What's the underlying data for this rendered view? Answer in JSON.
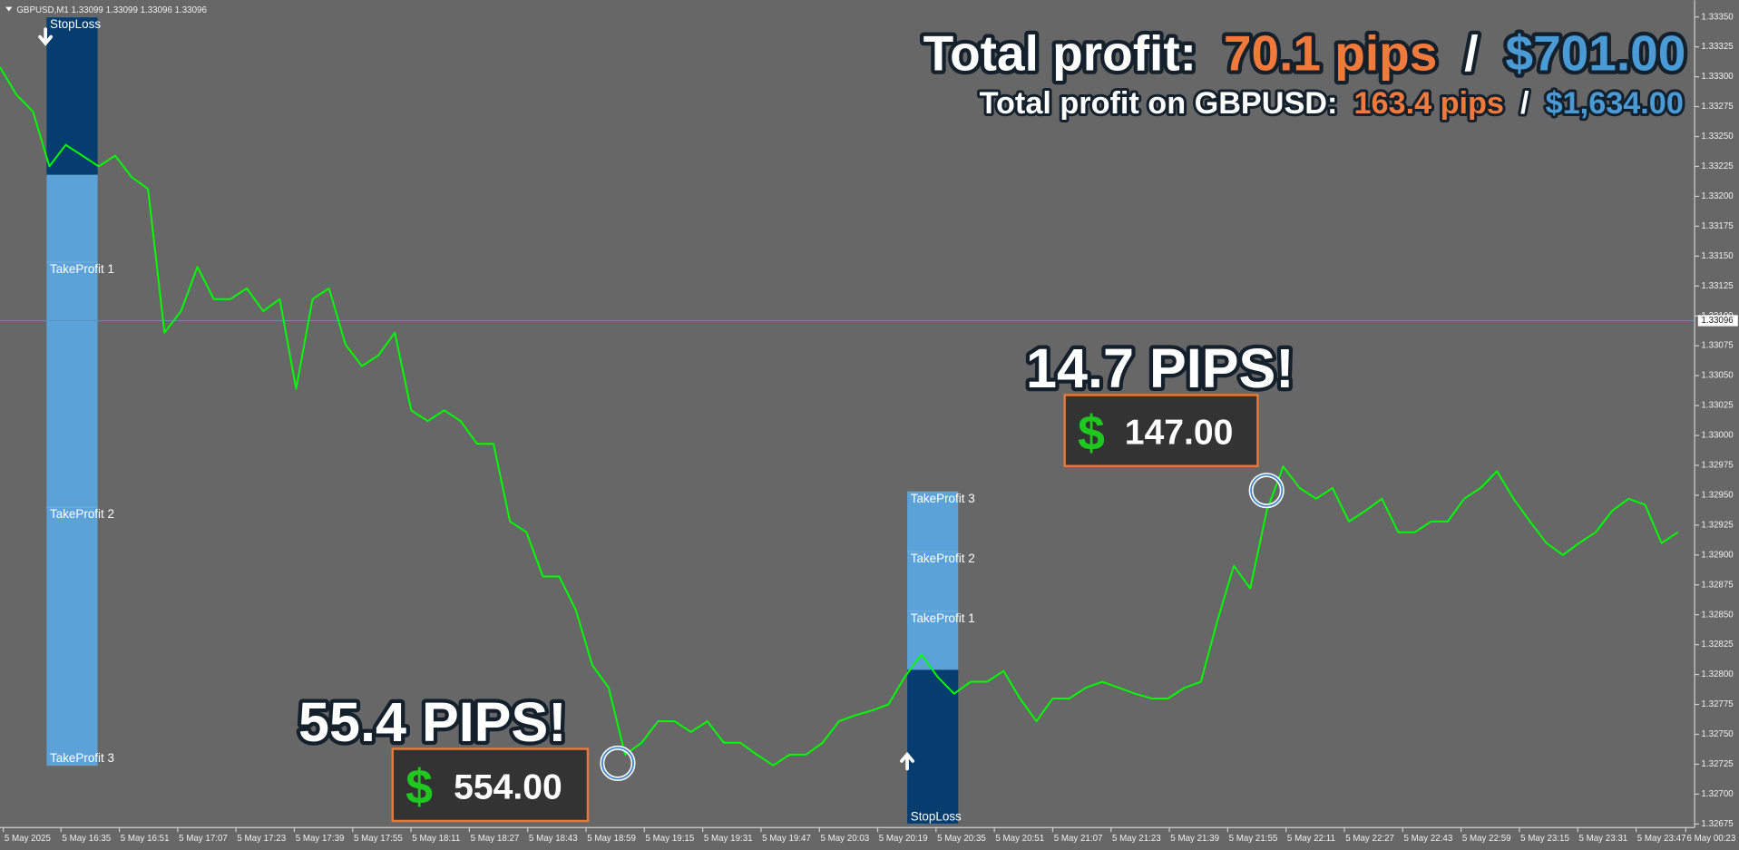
{
  "symbol_info": "GBPUSD,M1  1.33099 1.33099 1.33096 1.33096",
  "header": {
    "line1": {
      "label": "Total profit:",
      "pips": "70.1 pips",
      "separator": "/",
      "usd": "$701.00"
    },
    "line2": {
      "label": "Total profit on GBPUSD:",
      "pips": "163.4 pips",
      "separator": "/",
      "usd": "$1,634.00"
    }
  },
  "callouts": [
    {
      "headline": "55.4 PIPS!",
      "currency": "$",
      "amount": "554.00"
    },
    {
      "headline": "14.7 PIPS!",
      "currency": "$",
      "amount": "147.00"
    }
  ],
  "chart_data": {
    "type": "line",
    "color": "#00ff00",
    "values": [
      1.33308,
      1.33285,
      1.33271,
      1.33225,
      1.33243,
      1.33234,
      1.33225,
      1.33234,
      1.33216,
      1.33206,
      1.33086,
      1.33104,
      1.33141,
      1.33114,
      1.33114,
      1.33123,
      1.33104,
      1.33114,
      1.33039,
      1.33114,
      1.33123,
      1.33076,
      1.33058,
      1.33067,
      1.33086,
      1.33021,
      1.33012,
      1.33021,
      1.33012,
      1.32993,
      1.32993,
      1.32928,
      1.32919,
      1.32882,
      1.32882,
      1.32854,
      1.32808,
      1.32789,
      1.32733,
      1.32743,
      1.32761,
      1.32761,
      1.32752,
      1.32761,
      1.32743,
      1.32743,
      1.32733,
      1.32724,
      1.32733,
      1.32733,
      1.32743,
      1.32761,
      1.32766,
      1.3277,
      1.32775,
      1.32798,
      1.32817,
      1.32798,
      1.32784,
      1.32794,
      1.32794,
      1.32803,
      1.3278,
      1.32761,
      1.3278,
      1.3278,
      1.32789,
      1.32794,
      1.32789,
      1.32784,
      1.3278,
      1.3278,
      1.32789,
      1.32794,
      1.32845,
      1.32891,
      1.32872,
      1.32937,
      1.32974,
      1.32956,
      1.32947,
      1.32956,
      1.32928,
      1.32937,
      1.32947,
      1.32919,
      1.32919,
      1.32928,
      1.32928,
      1.32947,
      1.32956,
      1.3297,
      1.32947,
      1.32928,
      1.3291,
      1.329,
      1.3291,
      1.32919,
      1.32937,
      1.32947,
      1.32942,
      1.3291,
      1.32919
    ],
    "time_labels": [
      "5 May 2025",
      "5 May 16:35",
      "5 May 16:51",
      "5 May 17:07",
      "5 May 17:23",
      "5 May 17:39",
      "5 May 17:55",
      "5 May 18:11",
      "5 May 18:27",
      "5 May 18:43",
      "5 May 18:59",
      "5 May 19:15",
      "5 May 19:31",
      "5 May 19:47",
      "5 May 20:03",
      "5 May 20:19",
      "5 May 20:35",
      "5 May 20:51",
      "5 May 21:07",
      "5 May 21:23",
      "5 May 21:39",
      "5 May 21:55",
      "5 May 22:11",
      "5 May 22:27",
      "5 May 22:43",
      "5 May 22:59",
      "5 May 23:15",
      "5 May 23:31",
      "5 May 23:47",
      "6 May 00:23"
    ],
    "ylim": [
      1.32672,
      1.33364
    ],
    "yticks": [
      {
        "value": 1.3335,
        "label": "1.33350"
      },
      {
        "value": 1.33325,
        "label": "1.33325"
      },
      {
        "value": 1.333,
        "label": "1.33300"
      },
      {
        "value": 1.33275,
        "label": "1.33275"
      },
      {
        "value": 1.3325,
        "label": "1.33250"
      },
      {
        "value": 1.33225,
        "label": "1.33225"
      },
      {
        "value": 1.332,
        "label": "1.33200"
      },
      {
        "value": 1.33175,
        "label": "1.33175"
      },
      {
        "value": 1.3315,
        "label": "1.33150"
      },
      {
        "value": 1.33125,
        "label": "1.33125"
      },
      {
        "value": 1.331,
        "label": "1.33100"
      },
      {
        "value": 1.33075,
        "label": "1.33075"
      },
      {
        "value": 1.3305,
        "label": "1.33050"
      },
      {
        "value": 1.33025,
        "label": "1.33025"
      },
      {
        "value": 1.33,
        "label": "1.33000"
      },
      {
        "value": 1.32975,
        "label": "1.32975"
      },
      {
        "value": 1.3295,
        "label": "1.32950"
      },
      {
        "value": 1.32925,
        "label": "1.32925"
      },
      {
        "value": 1.329,
        "label": "1.32900"
      },
      {
        "value": 1.32875,
        "label": "1.32875"
      },
      {
        "value": 1.3285,
        "label": "1.32850"
      },
      {
        "value": 1.32825,
        "label": "1.32825"
      },
      {
        "value": 1.328,
        "label": "1.32800"
      },
      {
        "value": 1.32775,
        "label": "1.32775"
      },
      {
        "value": 1.3275,
        "label": "1.32750"
      },
      {
        "value": 1.32725,
        "label": "1.32725"
      },
      {
        "value": 1.327,
        "label": "1.32700"
      },
      {
        "value": 1.32675,
        "label": "1.32675"
      }
    ],
    "current_price": {
      "value": 1.33096,
      "label": "1.33096"
    },
    "trade_zones": [
      {
        "stop_loss": 1.3335,
        "entry": 1.33218,
        "take_profits": [
          1.33145,
          1.3294,
          1.32724
        ],
        "stop_label": "StopLoss",
        "take_profit_labels": [
          "TakeProfit 1",
          "TakeProfit 2",
          "TakeProfit 3"
        ]
      },
      {
        "stop_loss": 1.32675,
        "entry": 1.32804,
        "take_profits": [
          1.32853,
          1.32903,
          1.32953
        ],
        "stop_label": "StopLoss",
        "take_profit_labels": [
          "TakeProfit 1",
          "TakeProfit 2",
          "TakeProfit 3"
        ]
      }
    ]
  }
}
